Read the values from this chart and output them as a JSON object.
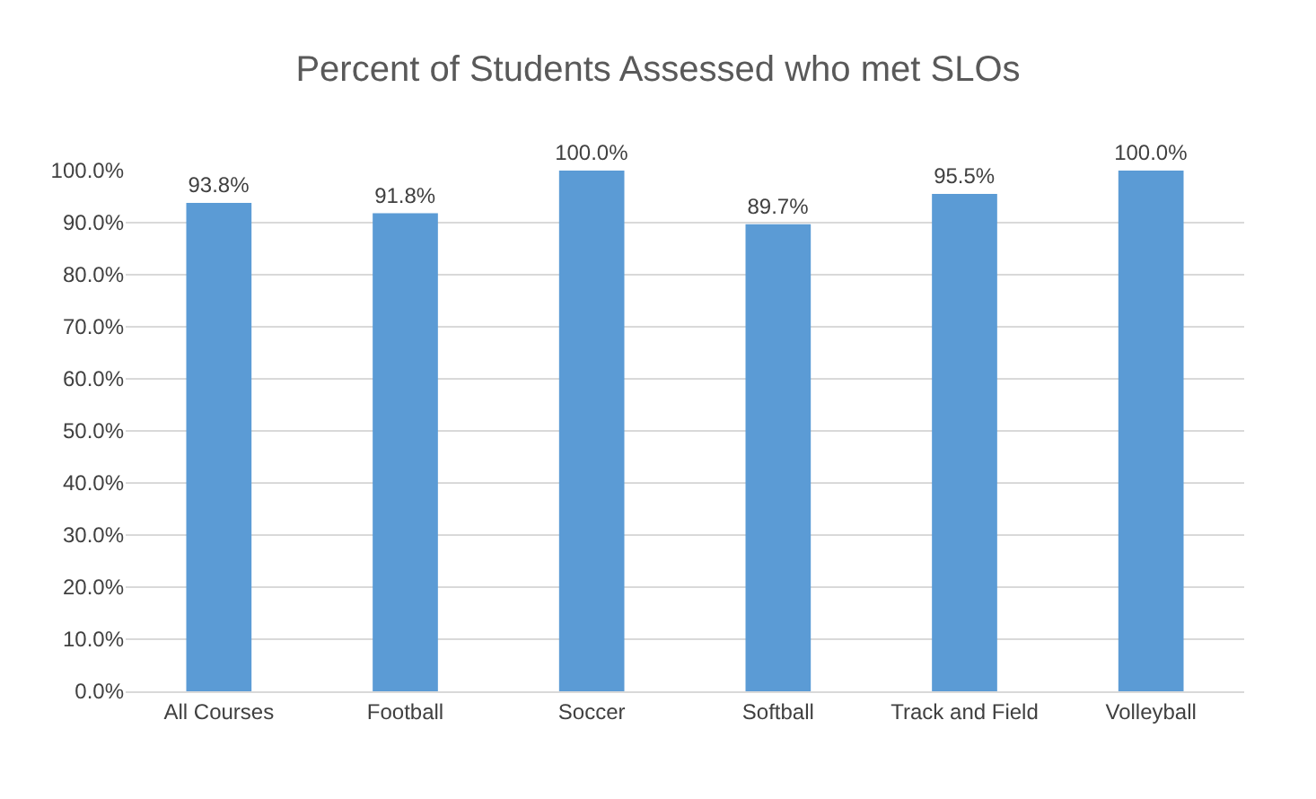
{
  "chart_data": {
    "type": "bar",
    "title": "Percent of Students Assessed who met SLOs",
    "categories": [
      "All Courses",
      "Football",
      "Soccer",
      "Softball",
      "Track and Field",
      "Volleyball"
    ],
    "values": [
      93.8,
      91.8,
      100.0,
      89.7,
      95.5,
      100.0
    ],
    "value_labels": [
      "93.8%",
      "91.8%",
      "100.0%",
      "89.7%",
      "95.5%",
      "100.0%"
    ],
    "color": "#5b9bd5",
    "ylim": [
      0,
      100
    ],
    "yticks": [
      {
        "value": 0,
        "label": "0.0%"
      },
      {
        "value": 10,
        "label": "10.0%"
      },
      {
        "value": 20,
        "label": "20.0%"
      },
      {
        "value": 30,
        "label": "30.0%"
      },
      {
        "value": 40,
        "label": "40.0%"
      },
      {
        "value": 50,
        "label": "50.0%"
      },
      {
        "value": 60,
        "label": "60.0%"
      },
      {
        "value": 70,
        "label": "70.0%"
      },
      {
        "value": 80,
        "label": "80.0%"
      },
      {
        "value": 90,
        "label": "90.0%"
      },
      {
        "value": 100,
        "label": "100.0%"
      }
    ],
    "grid": "y"
  }
}
